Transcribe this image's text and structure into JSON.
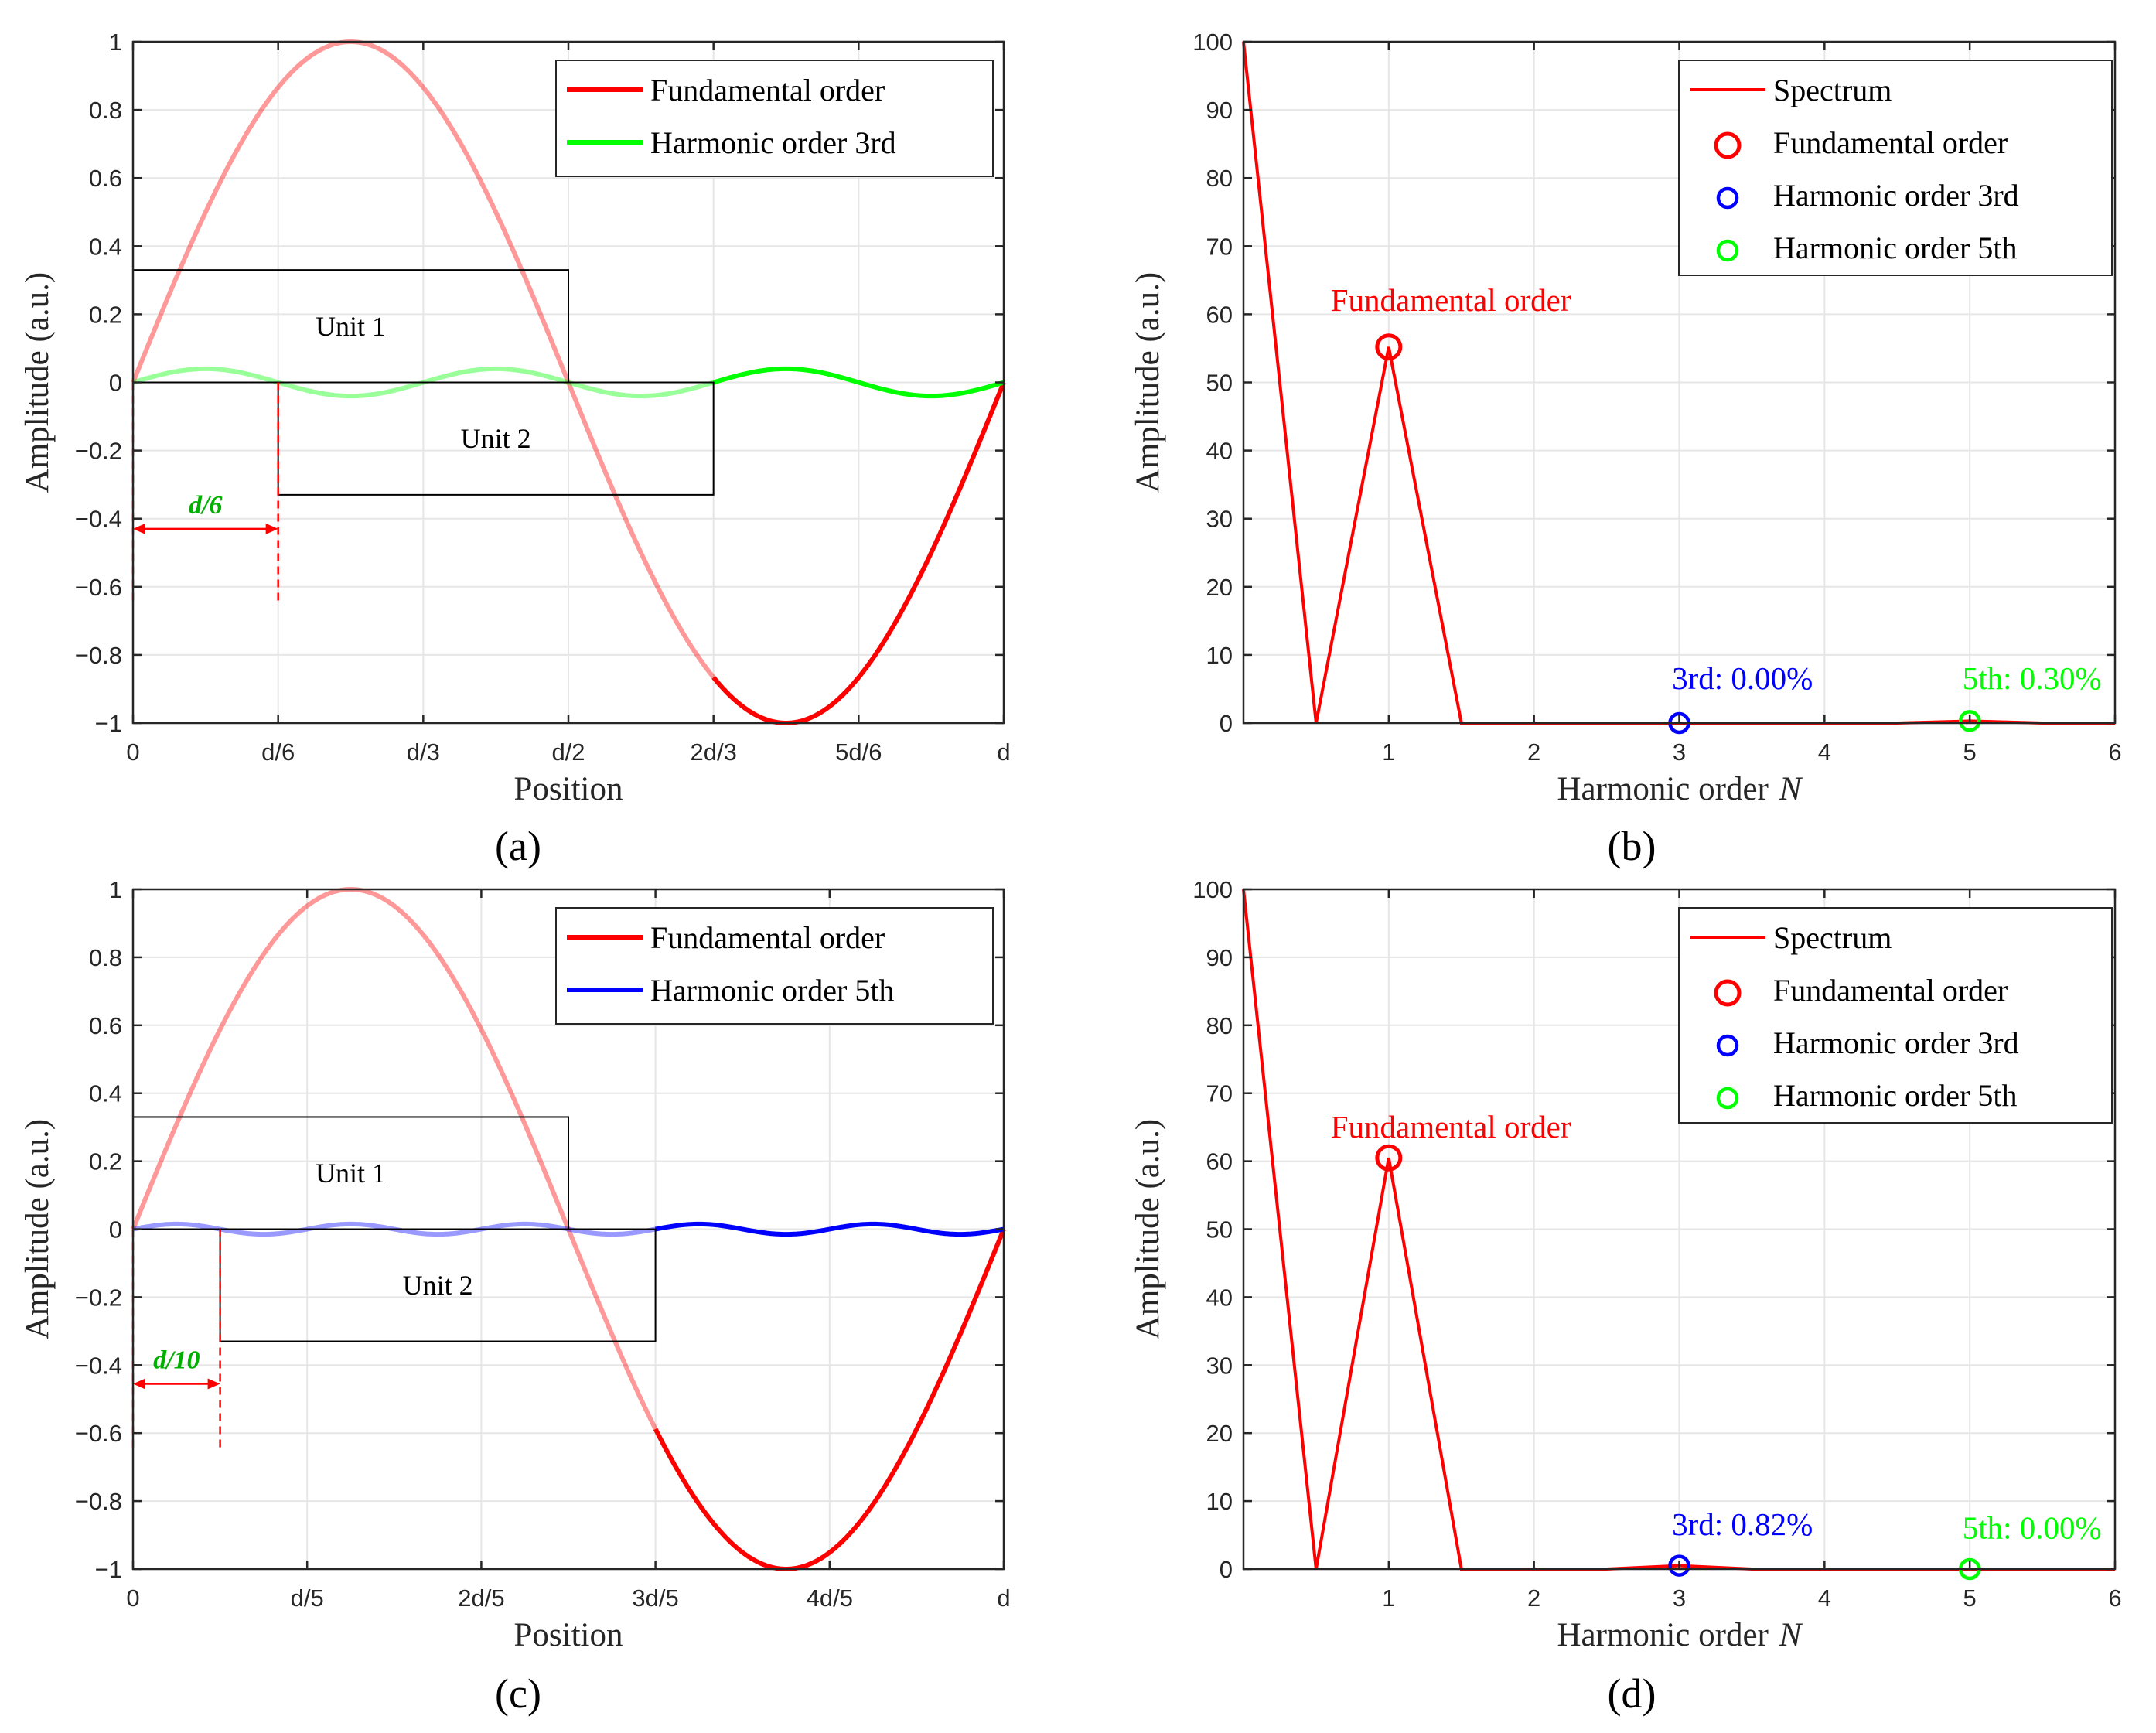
{
  "chart_data": [
    {
      "panel": "a",
      "type": "line",
      "panel_label": "(a)",
      "xlabel": "Position",
      "ylabel": "Amplitude (a.u.)",
      "xlim": [
        0,
        1
      ],
      "ylim": [
        -1,
        1
      ],
      "x_ticks": [
        0,
        0.16667,
        0.33333,
        0.5,
        0.66667,
        0.83333,
        1
      ],
      "x_tick_labels": [
        "0",
        "d/6",
        "d/3",
        "d/2",
        "2d/3",
        "5d/6",
        "d"
      ],
      "y_ticks": [
        -1,
        -0.8,
        -0.6,
        -0.4,
        -0.2,
        0,
        0.2,
        0.4,
        0.6,
        0.8,
        1
      ],
      "y_tick_labels": [
        "−1",
        "−0.8",
        "−0.6",
        "−0.4",
        "−0.2",
        "0",
        "0.2",
        "0.4",
        "0.6",
        "0.8",
        "1"
      ],
      "grid": true,
      "legend_position": "top-right",
      "series": [
        {
          "name": "Fundamental order",
          "color": "#ff0000",
          "function": "sin",
          "amplitude": 1,
          "cycles": 1
        },
        {
          "name": "Harmonic order 3rd",
          "color": "#00ff00",
          "function": "sin",
          "amplitude": 0.04,
          "cycles": 3
        }
      ],
      "faded_until_x": 0.66667,
      "units": [
        {
          "label": "Unit 1",
          "x0": 0,
          "x1": 0.5,
          "y0": 0,
          "y1": 0.33
        },
        {
          "label": "Unit 2",
          "x0": 0.16667,
          "x1": 0.66667,
          "y0": -0.33,
          "y1": 0
        }
      ],
      "offset_annotation": {
        "label": "d/6",
        "x0": 0,
        "x1": 0.16667,
        "y": -0.43
      }
    },
    {
      "panel": "b",
      "type": "line",
      "panel_label": "(b)",
      "xlabel": "Harmonic order",
      "xlabel_symbol": "N",
      "ylabel": "Amplitude (a.u.)",
      "xlim": [
        0,
        6
      ],
      "ylim": [
        0,
        100
      ],
      "x_ticks": [
        1,
        2,
        3,
        4,
        5,
        6
      ],
      "x_tick_labels": [
        "1",
        "2",
        "3",
        "4",
        "5",
        "6"
      ],
      "y_ticks": [
        0,
        10,
        20,
        30,
        40,
        50,
        60,
        70,
        80,
        90,
        100
      ],
      "y_tick_labels": [
        "0",
        "10",
        "20",
        "30",
        "40",
        "50",
        "60",
        "70",
        "80",
        "90",
        "100"
      ],
      "grid": true,
      "legend_position": "top-right",
      "spectrum": {
        "name": "Spectrum",
        "color": "#ff0000",
        "x": [
          0,
          0.5,
          1,
          1.5,
          2,
          2.5,
          3,
          3.5,
          4,
          4.5,
          5,
          5.5,
          6
        ],
        "y": [
          100,
          0,
          55.2,
          0,
          0,
          0,
          0,
          0,
          0,
          0,
          0.3,
          0,
          0
        ]
      },
      "markers": [
        {
          "name": "Fundamental order",
          "color": "#ff0000",
          "x": 1,
          "y": 55.2
        },
        {
          "name": "Harmonic order 3rd",
          "color": "#0000ff",
          "x": 3,
          "y": 0
        },
        {
          "name": "Harmonic order 5th",
          "color": "#00ff00",
          "x": 5,
          "y": 0.3
        }
      ],
      "annotations": [
        {
          "text": "Fundamental order",
          "color": "#ff0000",
          "x": 0.6,
          "y": 60.5
        },
        {
          "text": "3rd: 0.00%",
          "color": "#0000ff",
          "x": 2.95,
          "y": 5
        },
        {
          "text": "5th: 0.30%",
          "color": "#00ff00",
          "x": 4.95,
          "y": 5
        }
      ]
    },
    {
      "panel": "c",
      "type": "line",
      "panel_label": "(c)",
      "xlabel": "Position",
      "ylabel": "Amplitude (a.u.)",
      "xlim": [
        0,
        1
      ],
      "ylim": [
        -1,
        1
      ],
      "x_ticks": [
        0,
        0.2,
        0.4,
        0.6,
        0.8,
        1
      ],
      "x_tick_labels": [
        "0",
        "d/5",
        "2d/5",
        "3d/5",
        "4d/5",
        "d"
      ],
      "y_ticks": [
        -1,
        -0.8,
        -0.6,
        -0.4,
        -0.2,
        0,
        0.2,
        0.4,
        0.6,
        0.8,
        1
      ],
      "y_tick_labels": [
        "−1",
        "−0.8",
        "−0.6",
        "−0.4",
        "−0.2",
        "0",
        "0.2",
        "0.4",
        "0.6",
        "0.8",
        "1"
      ],
      "grid": true,
      "legend_position": "top-right",
      "series": [
        {
          "name": "Fundamental order",
          "color": "#ff0000",
          "function": "sin",
          "amplitude": 1,
          "cycles": 1
        },
        {
          "name": "Harmonic order 5th",
          "color": "#0000ff",
          "function": "sin",
          "amplitude": 0.015,
          "cycles": 5
        }
      ],
      "faded_until_x": 0.6,
      "units": [
        {
          "label": "Unit 1",
          "x0": 0,
          "x1": 0.5,
          "y0": 0,
          "y1": 0.33
        },
        {
          "label": "Unit 2",
          "x0": 0.1,
          "x1": 0.6,
          "y0": -0.33,
          "y1": 0
        }
      ],
      "offset_annotation": {
        "label": "d/10",
        "x0": 0,
        "x1": 0.1,
        "y": -0.455
      }
    },
    {
      "panel": "d",
      "type": "line",
      "panel_label": "(d)",
      "xlabel": "Harmonic order",
      "xlabel_symbol": "N",
      "ylabel": "Amplitude (a.u.)",
      "xlim": [
        0,
        6
      ],
      "ylim": [
        0,
        100
      ],
      "x_ticks": [
        1,
        2,
        3,
        4,
        5,
        6
      ],
      "x_tick_labels": [
        "1",
        "2",
        "3",
        "4",
        "5",
        "6"
      ],
      "y_ticks": [
        0,
        10,
        20,
        30,
        40,
        50,
        60,
        70,
        80,
        90,
        100
      ],
      "y_tick_labels": [
        "0",
        "10",
        "20",
        "30",
        "40",
        "50",
        "60",
        "70",
        "80",
        "90",
        "100"
      ],
      "grid": true,
      "legend_position": "top-right",
      "spectrum": {
        "name": "Spectrum",
        "color": "#ff0000",
        "x": [
          0,
          0.5,
          1,
          1.5,
          2,
          2.5,
          3,
          3.5,
          4,
          4.5,
          5,
          5.5,
          6
        ],
        "y": [
          100,
          0,
          60.5,
          0,
          0,
          0,
          0.5,
          0,
          0,
          0,
          0,
          0,
          0
        ]
      },
      "markers": [
        {
          "name": "Fundamental order",
          "color": "#ff0000",
          "x": 1,
          "y": 60.5
        },
        {
          "name": "Harmonic order 3rd",
          "color": "#0000ff",
          "x": 3,
          "y": 0.5
        },
        {
          "name": "Harmonic order 5th",
          "color": "#00ff00",
          "x": 5,
          "y": 0
        }
      ],
      "annotations": [
        {
          "text": "Fundamental order",
          "color": "#ff0000",
          "x": 0.6,
          "y": 63.5
        },
        {
          "text": "3rd: 0.82%",
          "color": "#0000ff",
          "x": 2.95,
          "y": 5
        },
        {
          "text": "5th: 0.00%",
          "color": "#00ff00",
          "x": 4.95,
          "y": 4.5
        }
      ]
    }
  ]
}
